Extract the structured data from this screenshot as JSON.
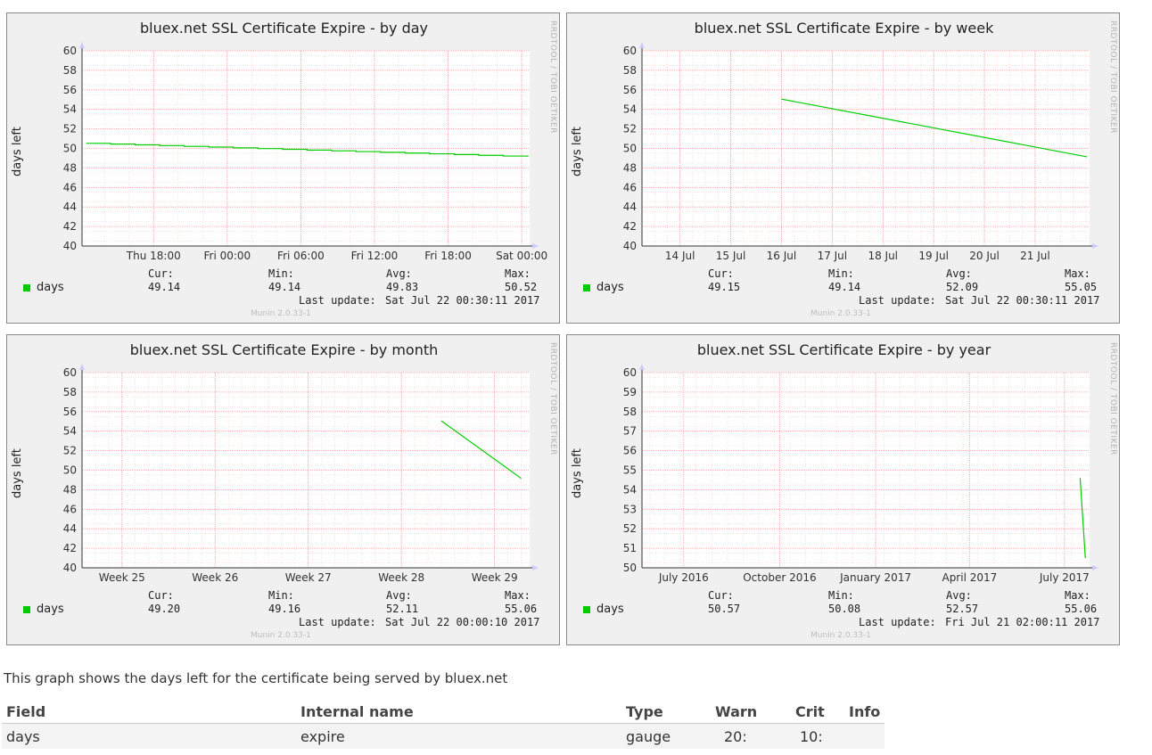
{
  "rrd_label": "RRDTOOL / TOBI OETIKER",
  "munin_version": "Munin 2.0.33-1",
  "ylabel": "days left",
  "legend_cols": {
    "cur": "Cur:",
    "min": "Min:",
    "avg": "Avg:",
    "max": "Max:"
  },
  "last_update_label": "Last update:",
  "series_color": "#00cc00",
  "graphs": [
    {
      "title": "bluex.net SSL Certificate Expire - by day",
      "legend": {
        "name": "days",
        "cur": "49.14",
        "min": "49.14",
        "avg": "49.83",
        "max": "50.52",
        "last_update": "Sat Jul 22 00:30:11 2017"
      }
    },
    {
      "title": "bluex.net SSL Certificate Expire - by week",
      "legend": {
        "name": "days",
        "cur": "49.15",
        "min": "49.14",
        "avg": "52.09",
        "max": "55.05",
        "last_update": "Sat Jul 22 00:30:11 2017"
      }
    },
    {
      "title": "bluex.net SSL Certificate Expire - by month",
      "legend": {
        "name": "days",
        "cur": "49.20",
        "min": "49.16",
        "avg": "52.11",
        "max": "55.06",
        "last_update": "Sat Jul 22 00:00:10 2017"
      }
    },
    {
      "title": "bluex.net SSL Certificate Expire - by year",
      "legend": {
        "name": "days",
        "cur": "50.57",
        "min": "50.08",
        "avg": "52.57",
        "max": "55.06",
        "last_update": "Fri Jul 21 02:00:11 2017"
      }
    }
  ],
  "chart_data": [
    {
      "type": "line",
      "title": "bluex.net SSL Certificate Expire - by day",
      "ylabel": "days left",
      "ylim": [
        40,
        60
      ],
      "yticks": [
        40,
        42,
        44,
        46,
        48,
        50,
        52,
        54,
        56,
        58,
        60
      ],
      "xlim": [
        "Thu Jul 20 2017 23:30",
        "Sat Jul 22 2017 00:30"
      ],
      "xticks": [
        {
          "label": "Thu 18:00",
          "at": "Thu Jul 20 2017 18:00"
        },
        {
          "label": "Fri 00:00",
          "at": "Fri Jul 21 2017 00:00"
        },
        {
          "label": "Fri 06:00",
          "at": "Fri Jul 21 2017 06:00"
        },
        {
          "label": "Fri 12:00",
          "at": "Fri Jul 21 2017 12:00"
        },
        {
          "label": "Fri 18:00",
          "at": "Fri Jul 21 2017 18:00"
        },
        {
          "label": "Sat 00:00",
          "at": "Sat Jul 22 2017 00:00"
        }
      ],
      "grid": true,
      "series": [
        {
          "name": "days",
          "color": "#00cc00",
          "x": [
            "Thu Jul 20 2017 12:30",
            "Sat Jul 22 2017 00:30"
          ],
          "y": [
            50.52,
            49.14
          ]
        }
      ]
    },
    {
      "type": "line",
      "title": "bluex.net SSL Certificate Expire - by week",
      "ylabel": "days left",
      "ylim": [
        40,
        60
      ],
      "yticks": [
        40,
        42,
        44,
        46,
        48,
        50,
        52,
        54,
        56,
        58,
        60
      ],
      "xticks": [
        {
          "label": "14 Jul",
          "at": "2017-07-14"
        },
        {
          "label": "15 Jul",
          "at": "2017-07-15"
        },
        {
          "label": "16 Jul",
          "at": "2017-07-16"
        },
        {
          "label": "17 Jul",
          "at": "2017-07-17"
        },
        {
          "label": "18 Jul",
          "at": "2017-07-18"
        },
        {
          "label": "19 Jul",
          "at": "2017-07-19"
        },
        {
          "label": "20 Jul",
          "at": "2017-07-20"
        },
        {
          "label": "21 Jul",
          "at": "2017-07-21"
        }
      ],
      "grid": true,
      "series": [
        {
          "name": "days",
          "color": "#00cc00",
          "x": [
            "2017-07-16 00:00",
            "2017-07-22 00:30"
          ],
          "y": [
            55.05,
            49.14
          ]
        }
      ]
    },
    {
      "type": "line",
      "title": "bluex.net SSL Certificate Expire - by month",
      "ylabel": "days left",
      "ylim": [
        40,
        60
      ],
      "yticks": [
        40,
        42,
        44,
        46,
        48,
        50,
        52,
        54,
        56,
        58,
        60
      ],
      "xticks": [
        {
          "label": "Week 25",
          "at": "2017-06-22"
        },
        {
          "label": "Week 26",
          "at": "2017-06-29"
        },
        {
          "label": "Week 27",
          "at": "2017-07-06"
        },
        {
          "label": "Week 28",
          "at": "2017-07-13"
        },
        {
          "label": "Week 29",
          "at": "2017-07-20"
        }
      ],
      "grid": true,
      "series": [
        {
          "name": "days",
          "color": "#00cc00",
          "x": [
            "2017-07-16",
            "2017-07-22"
          ],
          "y": [
            55.06,
            49.16
          ]
        }
      ]
    },
    {
      "type": "line",
      "title": "bluex.net SSL Certificate Expire - by year",
      "ylabel": "days left",
      "ylim": [
        50,
        60
      ],
      "yticks": [
        50,
        51,
        52,
        53,
        54,
        55,
        56,
        57,
        58,
        59,
        60
      ],
      "xticks": [
        {
          "label": "July 2016",
          "at": "2016-07-01"
        },
        {
          "label": "October 2016",
          "at": "2016-10-01"
        },
        {
          "label": "January 2017",
          "at": "2017-01-01"
        },
        {
          "label": "April 2017",
          "at": "2017-04-01"
        },
        {
          "label": "July 2017",
          "at": "2017-07-01"
        }
      ],
      "grid": true,
      "series": [
        {
          "name": "days",
          "color": "#00cc00",
          "x": [
            "2017-07-16",
            "2017-07-21"
          ],
          "y": [
            54.6,
            50.5
          ]
        }
      ]
    }
  ],
  "description": "This graph shows the days left for the certificate being served by bluex.net",
  "fields_table": {
    "headers": {
      "field": "Field",
      "internal": "Internal name",
      "type": "Type",
      "warn": "Warn",
      "crit": "Crit",
      "info": "Info"
    },
    "rows": [
      {
        "field": "days",
        "internal": "expire",
        "type": "gauge",
        "warn": "20:",
        "crit": "10:",
        "info": ""
      }
    ]
  }
}
